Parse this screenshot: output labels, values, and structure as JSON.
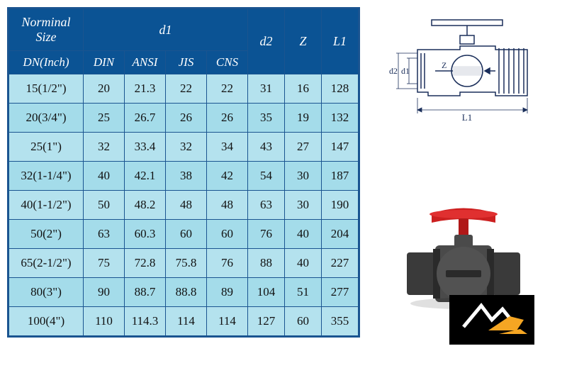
{
  "table": {
    "header_bg": "#0b5394",
    "header_text_color": "#ffffff",
    "border_color": "#1a5490",
    "row_odd_bg": "#b4e2ee",
    "row_even_bg": "#a4dcea",
    "font_family": "Times New Roman",
    "header_fontsize": 18,
    "cell_fontsize": 17,
    "headers": {
      "nominal_size": "Norminal Size",
      "d1": "d1",
      "d2": "d2",
      "z": "Z",
      "l1": "L1",
      "dn_inch": "DN(Inch)",
      "din": "DIN",
      "ansi": "ANSI",
      "jis": "JIS",
      "cns": "CNS"
    },
    "rows": [
      {
        "dn": "15(1/2\")",
        "din": "20",
        "ansi": "21.3",
        "jis": "22",
        "cns": "22",
        "d2": "31",
        "z": "16",
        "l1": "128"
      },
      {
        "dn": "20(3/4\")",
        "din": "25",
        "ansi": "26.7",
        "jis": "26",
        "cns": "26",
        "d2": "35",
        "z": "19",
        "l1": "132"
      },
      {
        "dn": "25(1\")",
        "din": "32",
        "ansi": "33.4",
        "jis": "32",
        "cns": "34",
        "d2": "43",
        "z": "27",
        "l1": "147"
      },
      {
        "dn": "32(1-1/4\")",
        "din": "40",
        "ansi": "42.1",
        "jis": "38",
        "cns": "42",
        "d2": "54",
        "z": "30",
        "l1": "187"
      },
      {
        "dn": "40(1-1/2\")",
        "din": "50",
        "ansi": "48.2",
        "jis": "48",
        "cns": "48",
        "d2": "63",
        "z": "30",
        "l1": "190"
      },
      {
        "dn": "50(2\")",
        "din": "63",
        "ansi": "60.3",
        "jis": "60",
        "cns": "60",
        "d2": "76",
        "z": "40",
        "l1": "204"
      },
      {
        "dn": "65(2-1/2\")",
        "din": "75",
        "ansi": "72.8",
        "jis": "75.8",
        "cns": "76",
        "d2": "88",
        "z": "40",
        "l1": "227"
      },
      {
        "dn": "80(3\")",
        "din": "90",
        "ansi": "88.7",
        "jis": "88.8",
        "cns": "89",
        "d2": "104",
        "z": "51",
        "l1": "277"
      },
      {
        "dn": "100(4\")",
        "din": "110",
        "ansi": "114.3",
        "jis": "114",
        "cns": "114",
        "d2": "127",
        "z": "60",
        "l1": "355"
      }
    ]
  },
  "diagram": {
    "stroke_color": "#1a2e5a",
    "fill_color": "#ffffff",
    "labels": {
      "d2": "d2",
      "d1": "d1",
      "z": "Z",
      "l1": "L1"
    }
  },
  "product": {
    "body_color": "#4a4a4a",
    "handle_color": "#cc2020"
  },
  "logo": {
    "bg_color": "#000000",
    "accent_color": "#f5a623"
  }
}
